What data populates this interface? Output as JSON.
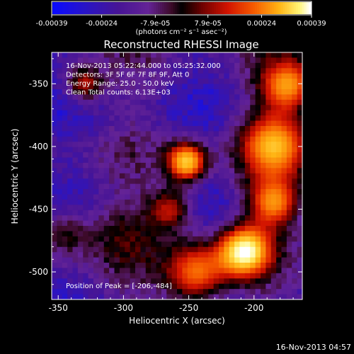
{
  "chart_data": {
    "type": "heatmap",
    "title": "Reconstructed RHESSI Image",
    "xlabel": "Heliocentric X (arcsec)",
    "ylabel": "Heliocentric Y (arcsec)",
    "xlim": [
      -355,
      -163
    ],
    "ylim": [
      -522,
      -325
    ],
    "x_ticks": [
      -350,
      -300,
      -250,
      -200
    ],
    "y_ticks": [
      -350,
      -400,
      -450,
      -500
    ],
    "colorbar": {
      "range": [
        -0.00039,
        0.00039
      ],
      "tick_values": [
        -0.00039,
        -0.00024,
        -7.9e-05,
        7.9e-05,
        0.00024,
        0.00039
      ],
      "tick_labels": [
        "-0.00039",
        "-0.00024",
        "-7.9e-05",
        "7.9e-05",
        "0.00024",
        "0.00039"
      ],
      "unit_label": "(photons cm⁻² s⁻¹ asec⁻²)"
    },
    "annotations": [
      "16-Nov-2013 05:22:44.000 to 05:25:32.000",
      "Detectors: 3F 5F 6F 7F 8F 9F, Att 0",
      "Energy Range: 25.0 - 50.0 keV",
      "Clean     Total counts: 6.13E+03"
    ],
    "peak_label": "Position of Peak = [-206,-484]",
    "peak": [
      -206,
      -484
    ],
    "sources": [
      {
        "x": -206,
        "y": -484,
        "amplitude": 1.0,
        "sigma": 14
      },
      {
        "x": -252,
        "y": -412,
        "amplitude": 0.82,
        "sigma": 11
      },
      {
        "x": -185,
        "y": -400,
        "amplitude": 0.8,
        "sigma": 18
      },
      {
        "x": -175,
        "y": -350,
        "amplitude": 0.7,
        "sigma": 15
      },
      {
        "x": -185,
        "y": -445,
        "amplitude": 0.65,
        "sigma": 14
      },
      {
        "x": -245,
        "y": -500,
        "amplitude": 0.6,
        "sigma": 18
      },
      {
        "x": -265,
        "y": -450,
        "amplitude": 0.45,
        "sigma": 12
      },
      {
        "x": -300,
        "y": -470,
        "amplitude": 0.25,
        "sigma": 18
      },
      {
        "x": -330,
        "y": -350,
        "amplitude": 0.45,
        "sigma": 10
      },
      {
        "x": -345,
        "y": -470,
        "amplitude": 0.3,
        "sigma": 14
      }
    ]
  },
  "footer": {
    "timestamp": "16-Nov-2013 04:57"
  }
}
